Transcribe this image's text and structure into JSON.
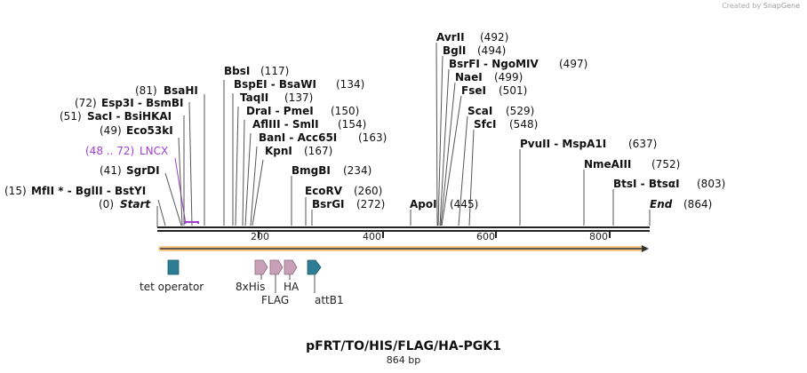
{
  "watermark": {
    "prefix": "Created by",
    "brand": "SnapGene"
  },
  "plasmid": {
    "name": "pFRT/TO/HIS/FLAG/HA-PGK1",
    "length_label": "864 bp"
  },
  "axis": {
    "ticks": [
      "200",
      "400",
      "600",
      "800"
    ]
  },
  "sites": [
    {
      "name": "Start",
      "pos": "(0)",
      "italic": true
    },
    {
      "name": "MfII * - BglII - BstYI",
      "pos": "(15)"
    },
    {
      "name": "SgrDI",
      "pos": "(41)"
    },
    {
      "name": "LNCX",
      "pos": "(48 .. 72)",
      "feature": true
    },
    {
      "name": "Eco53kI",
      "pos": "(49)"
    },
    {
      "name": "SacI - BsiHKAI",
      "pos": "(51)"
    },
    {
      "name": "Esp3I - BsmBI",
      "pos": "(72)"
    },
    {
      "name": "BsaHI",
      "pos": "(81)"
    },
    {
      "name": "BbsI",
      "pos": "(117)"
    },
    {
      "name": "BspEI - BsaWI",
      "pos": "(134)"
    },
    {
      "name": "TaqII",
      "pos": "(137)"
    },
    {
      "name": "DraI - PmeI",
      "pos": "(150)"
    },
    {
      "name": "AflIII - SmlI",
      "pos": "(154)"
    },
    {
      "name": "BanI - Acc65I",
      "pos": "(163)"
    },
    {
      "name": "KpnI",
      "pos": "(167)"
    },
    {
      "name": "BmgBI",
      "pos": "(234)"
    },
    {
      "name": "EcoRV",
      "pos": "(260)"
    },
    {
      "name": "BsrGI",
      "pos": "(272)"
    },
    {
      "name": "ApoI",
      "pos": "(445)"
    },
    {
      "name": "AvrII",
      "pos": "(492)"
    },
    {
      "name": "BglI",
      "pos": "(494)"
    },
    {
      "name": "BsrFI - NgoMIV",
      "pos": "(497)"
    },
    {
      "name": "NaeI",
      "pos": "(499)"
    },
    {
      "name": "FseI",
      "pos": "(501)"
    },
    {
      "name": "ScaI",
      "pos": "(529)"
    },
    {
      "name": "SfcI",
      "pos": "(548)"
    },
    {
      "name": "PvuII - MspA1I",
      "pos": "(637)"
    },
    {
      "name": "NmeAIII",
      "pos": "(752)"
    },
    {
      "name": "BtsI - BtsαI",
      "pos": "(803)"
    },
    {
      "name": "End",
      "pos": "(864)",
      "italic": true
    }
  ],
  "features": [
    {
      "name": "tet operator"
    },
    {
      "name": "8xHis"
    },
    {
      "name": "FLAG"
    },
    {
      "name": "HA"
    },
    {
      "name": "attB1"
    }
  ],
  "colors": {
    "lncx": "#a040d0",
    "feature_pink": "#c8a0b8",
    "feature_teal": "#2e7d95",
    "arrow_bar": "#f0a030"
  }
}
